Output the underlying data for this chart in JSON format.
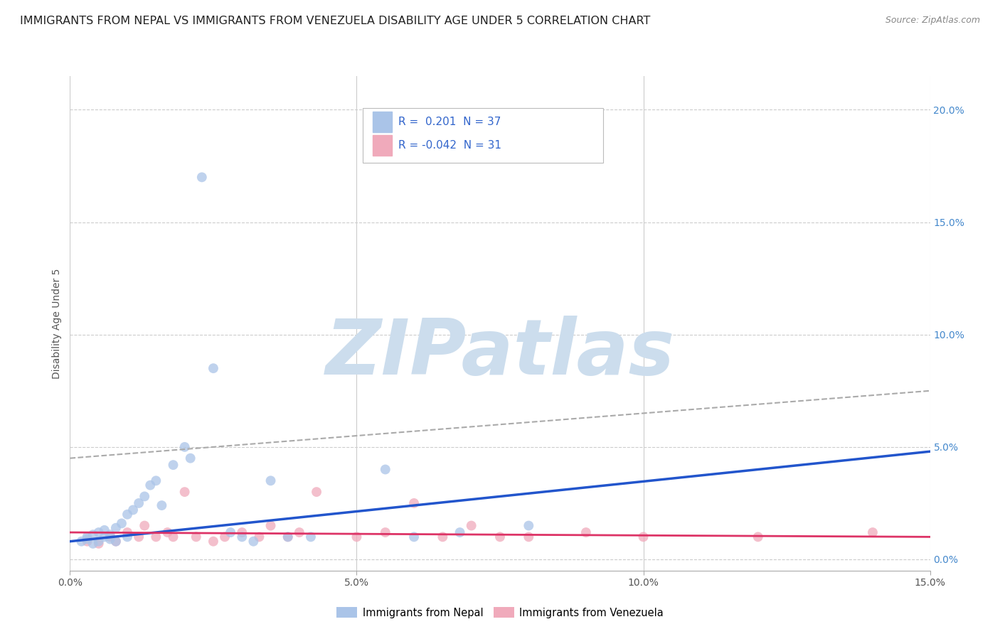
{
  "title": "IMMIGRANTS FROM NEPAL VS IMMIGRANTS FROM VENEZUELA DISABILITY AGE UNDER 5 CORRELATION CHART",
  "source": "Source: ZipAtlas.com",
  "ylabel": "Disability Age Under 5",
  "xlim": [
    0.0,
    0.15
  ],
  "ylim": [
    -0.005,
    0.215
  ],
  "x_ticks": [
    0.0,
    0.05,
    0.1,
    0.15
  ],
  "x_tick_labels": [
    "0.0%",
    "5.0%",
    "10.0%",
    "15.0%"
  ],
  "y_ticks_right": [
    0.0,
    0.05,
    0.1,
    0.15,
    0.2
  ],
  "y_tick_labels_right": [
    "0.0%",
    "5.0%",
    "10.0%",
    "15.0%",
    "20.0%"
  ],
  "nepal_color": "#aac4e8",
  "nepal_line_color": "#2255cc",
  "venezuela_color": "#f0aabb",
  "venezuela_line_color": "#dd3366",
  "nepal_scatter_x": [
    0.002,
    0.003,
    0.003,
    0.004,
    0.004,
    0.005,
    0.005,
    0.006,
    0.006,
    0.007,
    0.007,
    0.008,
    0.008,
    0.009,
    0.01,
    0.01,
    0.011,
    0.012,
    0.013,
    0.014,
    0.015,
    0.016,
    0.018,
    0.02,
    0.021,
    0.023,
    0.025,
    0.028,
    0.03,
    0.032,
    0.035,
    0.038,
    0.042,
    0.055,
    0.06,
    0.068,
    0.08
  ],
  "nepal_scatter_y": [
    0.008,
    0.009,
    0.01,
    0.007,
    0.011,
    0.008,
    0.012,
    0.01,
    0.013,
    0.009,
    0.011,
    0.014,
    0.008,
    0.016,
    0.01,
    0.02,
    0.022,
    0.025,
    0.028,
    0.033,
    0.035,
    0.024,
    0.042,
    0.05,
    0.045,
    0.17,
    0.085,
    0.012,
    0.01,
    0.008,
    0.035,
    0.01,
    0.01,
    0.04,
    0.01,
    0.012,
    0.015
  ],
  "venezuela_scatter_x": [
    0.003,
    0.005,
    0.007,
    0.008,
    0.01,
    0.012,
    0.013,
    0.015,
    0.017,
    0.018,
    0.02,
    0.022,
    0.025,
    0.027,
    0.03,
    0.033,
    0.035,
    0.038,
    0.04,
    0.043,
    0.05,
    0.055,
    0.06,
    0.065,
    0.07,
    0.075,
    0.08,
    0.09,
    0.1,
    0.12,
    0.14
  ],
  "venezuela_scatter_y": [
    0.008,
    0.007,
    0.01,
    0.008,
    0.012,
    0.01,
    0.015,
    0.01,
    0.012,
    0.01,
    0.03,
    0.01,
    0.008,
    0.01,
    0.012,
    0.01,
    0.015,
    0.01,
    0.012,
    0.03,
    0.01,
    0.012,
    0.025,
    0.01,
    0.015,
    0.01,
    0.01,
    0.012,
    0.01,
    0.01,
    0.012
  ],
  "nepal_trend_x": [
    0.0,
    0.15
  ],
  "nepal_trend_y": [
    0.008,
    0.048
  ],
  "venezuela_trend_x": [
    0.0,
    0.15
  ],
  "venezuela_trend_y": [
    0.012,
    0.01
  ],
  "dashed_line_x": [
    0.0,
    0.15
  ],
  "dashed_line_y": [
    0.045,
    0.075
  ],
  "watermark_text": "ZIPatlas",
  "watermark_color": "#ccdded",
  "background_color": "#ffffff",
  "grid_color": "#cccccc",
  "title_fontsize": 11.5,
  "axis_label_fontsize": 10,
  "tick_fontsize": 10,
  "source_fontsize": 9,
  "legend_nepal_label": "Immigrants from Nepal",
  "legend_venezuela_label": "Immigrants from Venezuela"
}
